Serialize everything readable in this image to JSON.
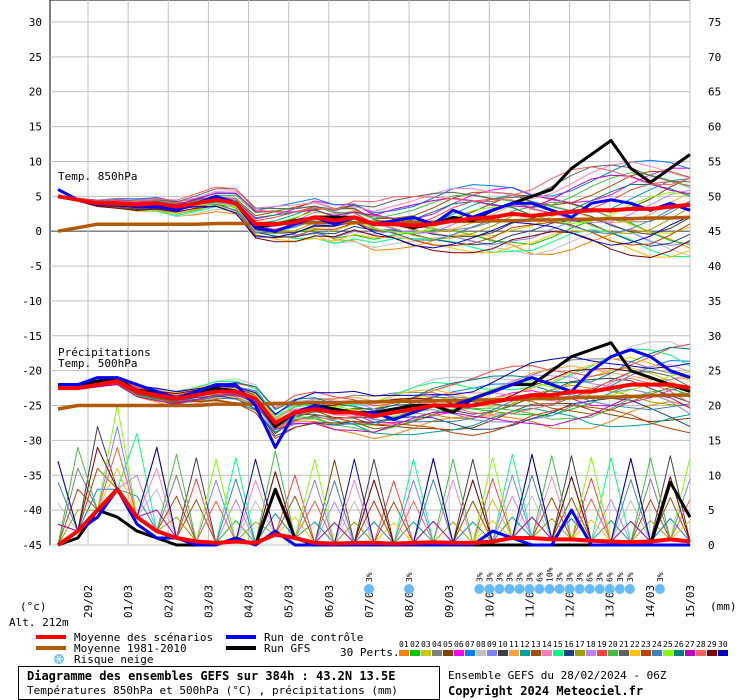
{
  "chart_data": {
    "type": "line",
    "left_axis_ticks": [
      30,
      25,
      20,
      15,
      10,
      5,
      0,
      -5,
      -10,
      -15,
      -20,
      -25,
      -30,
      -35,
      -40,
      -45
    ],
    "right_axis_ticks": [
      75,
      70,
      65,
      60,
      55,
      50,
      45,
      40,
      35,
      30,
      25,
      20,
      15,
      10,
      5,
      0
    ],
    "left_unit": "(°c)",
    "right_unit": "(mm)",
    "altitude": "Alt. 212m",
    "x_labels": [
      "29/02",
      "01/03",
      "02/03",
      "03/03",
      "04/03",
      "05/03",
      "06/03",
      "07/03",
      "08/03",
      "09/03",
      "10/03",
      "11/03",
      "12/03",
      "13/03",
      "14/03",
      "15/03"
    ],
    "label_temp850": "Temp. 850hPa",
    "label_precip": "Précipitations",
    "label_temp500": "Temp. 500hPa",
    "snow_risk": [
      {
        "day": 8,
        "pct": "3%"
      },
      {
        "day": 9,
        "pct": "3%"
      },
      {
        "day": 10.75,
        "pct": "3%"
      },
      {
        "day": 11,
        "pct": "3%"
      },
      {
        "day": 11.25,
        "pct": "3%"
      },
      {
        "day": 11.5,
        "pct": "3%"
      },
      {
        "day": 11.75,
        "pct": "3%"
      },
      {
        "day": 12,
        "pct": "3%"
      },
      {
        "day": 12.25,
        "pct": "6%"
      },
      {
        "day": 12.5,
        "pct": "10%"
      },
      {
        "day": 12.75,
        "pct": "3%"
      },
      {
        "day": 13,
        "pct": "3%"
      },
      {
        "day": 13.25,
        "pct": "3%"
      },
      {
        "day": 13.5,
        "pct": "6%"
      },
      {
        "day": 13.75,
        "pct": "3%"
      },
      {
        "day": 14,
        "pct": "6%"
      },
      {
        "day": 14.25,
        "pct": "3%"
      },
      {
        "day": 14.5,
        "pct": "3%"
      },
      {
        "day": 15.25,
        "pct": "3%"
      }
    ],
    "series": [
      {
        "name": "Moyenne des scénarios",
        "color": "#ff0000",
        "t850": [
          5,
          4.5,
          4,
          4,
          3.8,
          4,
          3.5,
          4,
          4.5,
          4,
          1,
          1,
          1.3,
          2,
          1.5,
          2,
          1,
          1,
          0.8,
          1,
          1.5,
          1.8,
          2,
          2.5,
          2.2,
          2.5,
          2.8,
          3,
          3,
          3.2,
          3.2,
          3.5,
          3.8
        ],
        "t500": [
          -22.5,
          -22.5,
          -22,
          -21.5,
          -23,
          -23.5,
          -24,
          -23.5,
          -23,
          -23,
          -24,
          -27.5,
          -26,
          -25.5,
          -26,
          -26,
          -26.5,
          -26,
          -25.5,
          -25,
          -25,
          -25,
          -24.5,
          -24,
          -23.5,
          -23.5,
          -23,
          -23,
          -22.5,
          -22,
          -22,
          -22,
          -22.5
        ],
        "precip": [
          0,
          2,
          5,
          8,
          4,
          2,
          1,
          0.5,
          0.3,
          0.5,
          0.3,
          1.5,
          1,
          0.3,
          0.2,
          0.3,
          0.3,
          0.2,
          0.3,
          0.4,
          0.3,
          0.3,
          0.5,
          1,
          1,
          0.8,
          0.8,
          0.6,
          0.5,
          0.4,
          0.5,
          0.8,
          0.5
        ]
      },
      {
        "name": "Moyenne 1981-2010",
        "color": "#b25a00",
        "t850": [
          0,
          0.5,
          1,
          1,
          1,
          1,
          1,
          1,
          1.1,
          1.1,
          1.1,
          1.1,
          1.2,
          1.2,
          1.2,
          1.2,
          1.3,
          1.3,
          1.3,
          1.3,
          1.4,
          1.4,
          1.5,
          1.5,
          1.6,
          1.6,
          1.7,
          1.7,
          1.8,
          1.8,
          1.9,
          1.9,
          2
        ],
        "t500": [
          -25.5,
          -25,
          -25,
          -25,
          -25,
          -25,
          -25,
          -25,
          -24.8,
          -24.8,
          -24.8,
          -24.7,
          -24.7,
          -24.6,
          -24.6,
          -24.5,
          -24.5,
          -24.4,
          -24.4,
          -24.3,
          -24.3,
          -24.2,
          -24.2,
          -24.1,
          -24,
          -24,
          -23.9,
          -23.8,
          -23.8,
          -23.7,
          -23.6,
          -23.5,
          -23.5
        ]
      },
      {
        "name": "Run de contrôle",
        "color": "#0000ff",
        "t850": [
          6,
          4.5,
          4,
          4,
          3.5,
          3.5,
          3,
          4,
          5,
          4,
          0.5,
          0,
          1,
          2,
          1,
          2,
          1,
          1.5,
          2,
          1,
          3,
          2,
          3,
          4,
          4,
          3,
          2,
          4,
          4.5,
          4,
          3,
          4,
          3
        ],
        "t500": [
          -22,
          -22,
          -21,
          -21,
          -22,
          -23,
          -24,
          -23,
          -22,
          -22,
          -25,
          -31,
          -26,
          -25,
          -26,
          -26,
          -26,
          -27,
          -26,
          -25,
          -25,
          -24,
          -23,
          -22,
          -21,
          -22,
          -23,
          -20,
          -18,
          -17,
          -18,
          -20,
          -21
        ],
        "precip": [
          0,
          2,
          4,
          8,
          3,
          1,
          1,
          0,
          0,
          1,
          0,
          2,
          0,
          0,
          0,
          0,
          0,
          0,
          0,
          0,
          0,
          0,
          2,
          1,
          0,
          0,
          5,
          0,
          0,
          0,
          0,
          0,
          0
        ]
      },
      {
        "name": "Run GFS",
        "color": "#000000",
        "t850": [
          5,
          4.5,
          4,
          4,
          3.5,
          4,
          3.5,
          4,
          4.5,
          4,
          0.5,
          1,
          1.5,
          2,
          2,
          2,
          1,
          1,
          0.5,
          1,
          2,
          1.5,
          3,
          4,
          5,
          6,
          9,
          11,
          13,
          9,
          7,
          9,
          11
        ],
        "t500": [
          -22,
          -22,
          -21.5,
          -21,
          -23,
          -23,
          -24,
          -23,
          -22.5,
          -23,
          -24,
          -28,
          -26,
          -25,
          -25.5,
          -26,
          -26,
          -25.5,
          -25,
          -25,
          -26,
          -24,
          -23,
          -22,
          -22,
          -20,
          -18,
          -17,
          -16,
          -20,
          -21,
          -22,
          -23
        ],
        "precip": [
          0,
          1,
          5,
          4,
          2,
          1,
          0,
          0,
          0,
          1,
          0,
          8,
          1,
          0,
          0,
          0,
          0,
          0,
          0,
          0,
          0,
          0,
          0,
          0,
          0,
          0,
          0,
          0,
          0,
          0,
          0,
          9,
          4
        ]
      }
    ],
    "members": [
      {
        "id": "01",
        "color": "#ff8000"
      },
      {
        "id": "02",
        "color": "#00c800"
      },
      {
        "id": "03",
        "color": "#c8c800"
      },
      {
        "id": "04",
        "color": "#808080"
      },
      {
        "id": "05",
        "color": "#804000"
      },
      {
        "id": "06",
        "color": "#ff00ff"
      },
      {
        "id": "07",
        "color": "#0080ff"
      },
      {
        "id": "08",
        "color": "#c0c0c0"
      },
      {
        "id": "09",
        "color": "#8080ff"
      },
      {
        "id": "10",
        "color": "#404040"
      },
      {
        "id": "11",
        "color": "#ffa040"
      },
      {
        "id": "12",
        "color": "#00a0a0"
      },
      {
        "id": "13",
        "color": "#a05000"
      },
      {
        "id": "14",
        "color": "#ff80c0"
      },
      {
        "id": "15",
        "color": "#00ff80"
      },
      {
        "id": "16",
        "color": "#204080"
      },
      {
        "id": "17",
        "color": "#a0a000"
      },
      {
        "id": "18",
        "color": "#c080ff"
      },
      {
        "id": "19",
        "color": "#ff4040"
      },
      {
        "id": "20",
        "color": "#40c040"
      },
      {
        "id": "21",
        "color": "#606060"
      },
      {
        "id": "22",
        "color": "#ffc000"
      },
      {
        "id": "23",
        "color": "#c04000"
      },
      {
        "id": "24",
        "color": "#4080c0"
      },
      {
        "id": "25",
        "color": "#80ff00"
      },
      {
        "id": "26",
        "color": "#008080"
      },
      {
        "id": "27",
        "color": "#c000c0"
      },
      {
        "id": "28",
        "color": "#ff6060"
      },
      {
        "id": "29",
        "color": "#800000"
      },
      {
        "id": "30",
        "color": "#0000c0"
      }
    ],
    "member_label": "30 Perts."
  },
  "legend": {
    "mean": "Moyenne des scénarios",
    "clim": "Moyenne 1981-2010",
    "snow": "Risque neige",
    "control": "Run de contrôle",
    "gfs": "Run GFS"
  },
  "info": {
    "title": "Diagramme des ensembles GEFS sur 384h : 43.2N 13.5E",
    "subtitle": "Températures 850hPa et 500hPa (°C) , précipitations (mm)",
    "run": "Ensemble GEFS du 28/02/2024 - 06Z",
    "copyright": "Copyright 2024 Meteociel.fr"
  }
}
